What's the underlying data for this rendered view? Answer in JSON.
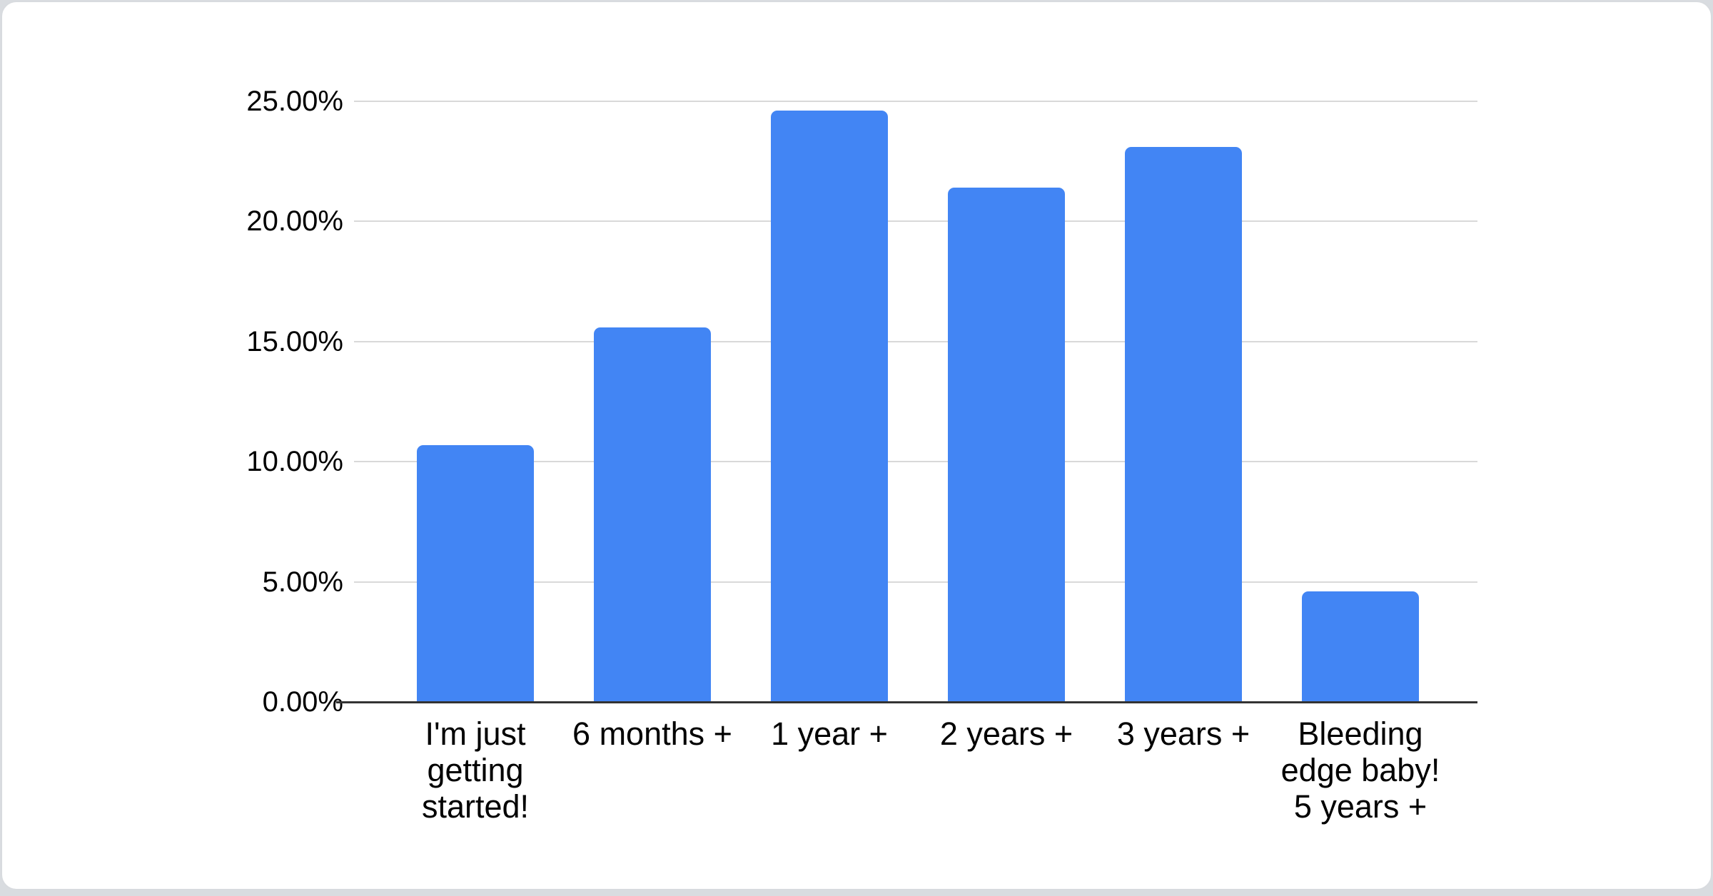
{
  "page": {
    "background_color": "#d9dce0",
    "card_background_color": "#ffffff",
    "card_border_color": "#d8dbdf"
  },
  "chart_data": {
    "type": "bar",
    "title": "",
    "xlabel": "",
    "ylabel": "",
    "categories": [
      "I'm just getting started!",
      "6 months +",
      "1 year +",
      "2 years +",
      "3 years +",
      "Bleeding edge baby! 5 years +"
    ],
    "categories_wrapped": [
      [
        "I'm just",
        "getting",
        "started!"
      ],
      [
        "6 months +"
      ],
      [
        "1 year +"
      ],
      [
        "2 years +"
      ],
      [
        "3 years +"
      ],
      [
        "Bleeding",
        "edge baby!",
        "5 years +"
      ]
    ],
    "values": [
      10.7,
      15.6,
      24.6,
      21.4,
      23.1,
      4.6
    ],
    "value_unit": "%",
    "ylim": [
      0,
      25
    ],
    "ytick_step": 5,
    "ytick_labels": [
      "0.00%",
      "5.00%",
      "10.00%",
      "15.00%",
      "20.00%",
      "25.00%"
    ],
    "grid": true,
    "legend": "none",
    "bar_color": "#4285f4",
    "gridline_color": "#d9d9d9",
    "axis_line_color": "#333333",
    "label_color": "#000000"
  }
}
